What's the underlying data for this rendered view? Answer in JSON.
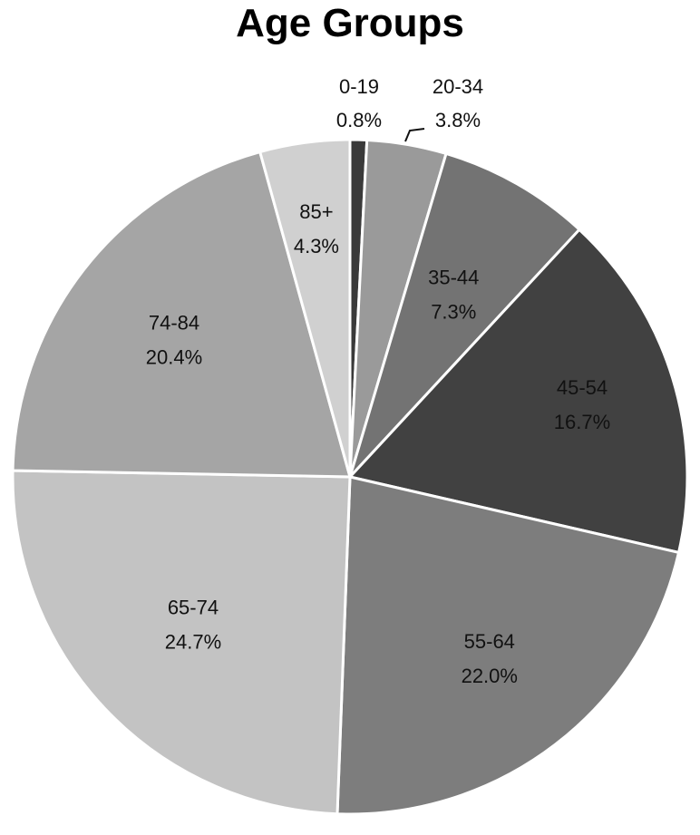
{
  "chart_data": {
    "type": "pie",
    "title": "Age Groups",
    "categories": [
      "0-19",
      "20-34",
      "35-44",
      "45-54",
      "55-64",
      "65-74",
      "74-84",
      "85+"
    ],
    "values": [
      0.8,
      3.8,
      7.3,
      16.7,
      22.0,
      24.7,
      20.4,
      4.3
    ],
    "value_labels": [
      "0.8%",
      "3.8%",
      "7.3%",
      "16.7%",
      "22.0%",
      "24.7%",
      "20.4%",
      "4.3%"
    ],
    "colors": [
      "#3a3a3a",
      "#9a9a9a",
      "#737373",
      "#414141",
      "#7d7d7d",
      "#c3c3c3",
      "#a5a5a5",
      "#d0d0d0"
    ],
    "start": "12 o'clock",
    "direction": "clockwise",
    "legend": "none"
  }
}
